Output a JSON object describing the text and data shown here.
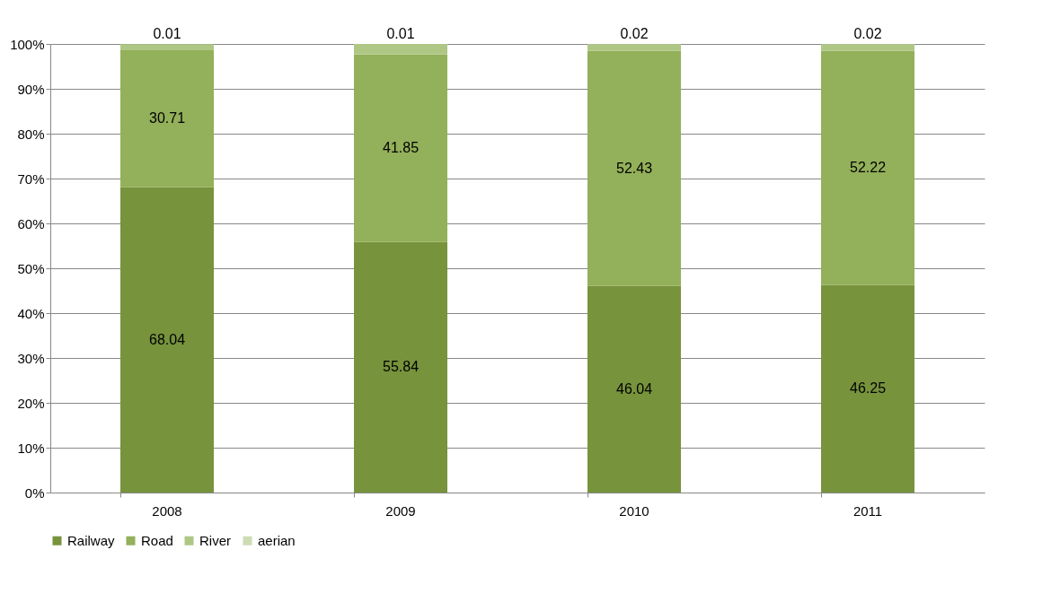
{
  "chart_data": {
    "type": "bar",
    "stacked": true,
    "categories": [
      "2008",
      "2009",
      "2010",
      "2011"
    ],
    "series": [
      {
        "name": "Railway",
        "color": "#77933c",
        "values": [
          68.04,
          55.84,
          46.04,
          46.25
        ],
        "value_labels": [
          "68.04",
          "55.84",
          "46.04",
          "46.25"
        ]
      },
      {
        "name": "Road",
        "color": "#93b05a",
        "values": [
          30.71,
          41.85,
          52.43,
          52.22
        ],
        "value_labels": [
          "30.71",
          "41.85",
          "52.43",
          "52.22"
        ]
      },
      {
        "name": "River",
        "color": "#afc785",
        "values": [
          1.2,
          2.3,
          1.5,
          1.5
        ],
        "value_labels": [
          null,
          null,
          null,
          null
        ]
      },
      {
        "name": "aerian",
        "color": "#cddcb4",
        "values": [
          0.01,
          0.01,
          0.02,
          0.02
        ],
        "value_labels": [
          "0.01",
          "0.01",
          "0.02",
          "0.02"
        ]
      }
    ],
    "ylim": [
      0,
      100
    ],
    "yticks": [
      {
        "value": 0,
        "label": "0%"
      },
      {
        "value": 10,
        "label": "10%"
      },
      {
        "value": 20,
        "label": "20%"
      },
      {
        "value": 30,
        "label": "30%"
      },
      {
        "value": 40,
        "label": "40%"
      },
      {
        "value": 50,
        "label": "50%"
      },
      {
        "value": 60,
        "label": "60%"
      },
      {
        "value": 70,
        "label": "70%"
      },
      {
        "value": 80,
        "label": "80%"
      },
      {
        "value": 90,
        "label": "90%"
      },
      {
        "value": 100,
        "label": "100%"
      }
    ],
    "grid": "y",
    "legend": "bottom"
  }
}
